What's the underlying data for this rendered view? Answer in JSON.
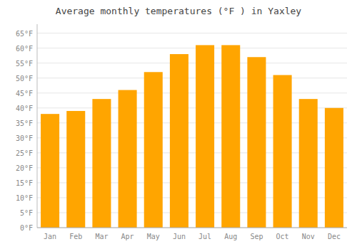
{
  "chart_data": {
    "type": "bar",
    "title": "Average monthly temperatures (°F ) in Yaxley",
    "categories": [
      "Jan",
      "Feb",
      "Mar",
      "Apr",
      "May",
      "Jun",
      "Jul",
      "Aug",
      "Sep",
      "Oct",
      "Nov",
      "Dec"
    ],
    "values": [
      38,
      39,
      43,
      46,
      52,
      58,
      61,
      61,
      57,
      51,
      43,
      40
    ],
    "color": "#FFA500",
    "ylim": [
      0,
      68
    ],
    "yticks": [
      {
        "value": 0,
        "label": "0°F"
      },
      {
        "value": 5,
        "label": "5°F"
      },
      {
        "value": 10,
        "label": "10°F"
      },
      {
        "value": 15,
        "label": "15°F"
      },
      {
        "value": 20,
        "label": "20°F"
      },
      {
        "value": 25,
        "label": "25°F"
      },
      {
        "value": 30,
        "label": "30°F"
      },
      {
        "value": 35,
        "label": "35°F"
      },
      {
        "value": 40,
        "label": "40°F"
      },
      {
        "value": 45,
        "label": "45°F"
      },
      {
        "value": 50,
        "label": "50°F"
      },
      {
        "value": 55,
        "label": "55°F"
      },
      {
        "value": 60,
        "label": "60°F"
      },
      {
        "value": 65,
        "label": "65°F"
      }
    ],
    "grid": true
  }
}
